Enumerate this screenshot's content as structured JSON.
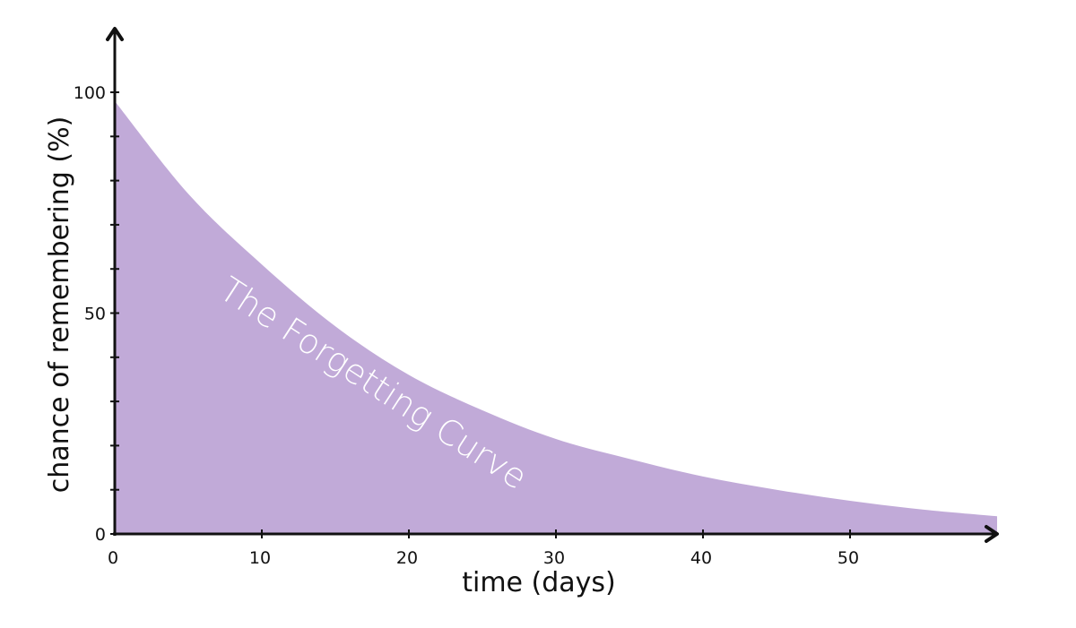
{
  "chart_data": {
    "type": "area",
    "title": "",
    "xlabel": "time (days)",
    "ylabel": "chance of remembering (%)",
    "annotation": "The Forgetting Curve",
    "xlim": [
      0,
      60
    ],
    "ylim": [
      0,
      100
    ],
    "x_ticks": [
      0,
      10,
      20,
      30,
      40,
      50
    ],
    "y_ticks": [
      0,
      50,
      100
    ],
    "y_minor_tick_step": 10,
    "grid": false,
    "fill_color": "#c1aad8",
    "axis_color": "#111111",
    "x": [
      0,
      5,
      10,
      15,
      20,
      25,
      30,
      35,
      40,
      45,
      50,
      55,
      60
    ],
    "y": [
      98,
      77,
      61,
      47,
      36,
      28,
      21.5,
      17,
      13,
      10,
      7.5,
      5.5,
      4
    ]
  }
}
